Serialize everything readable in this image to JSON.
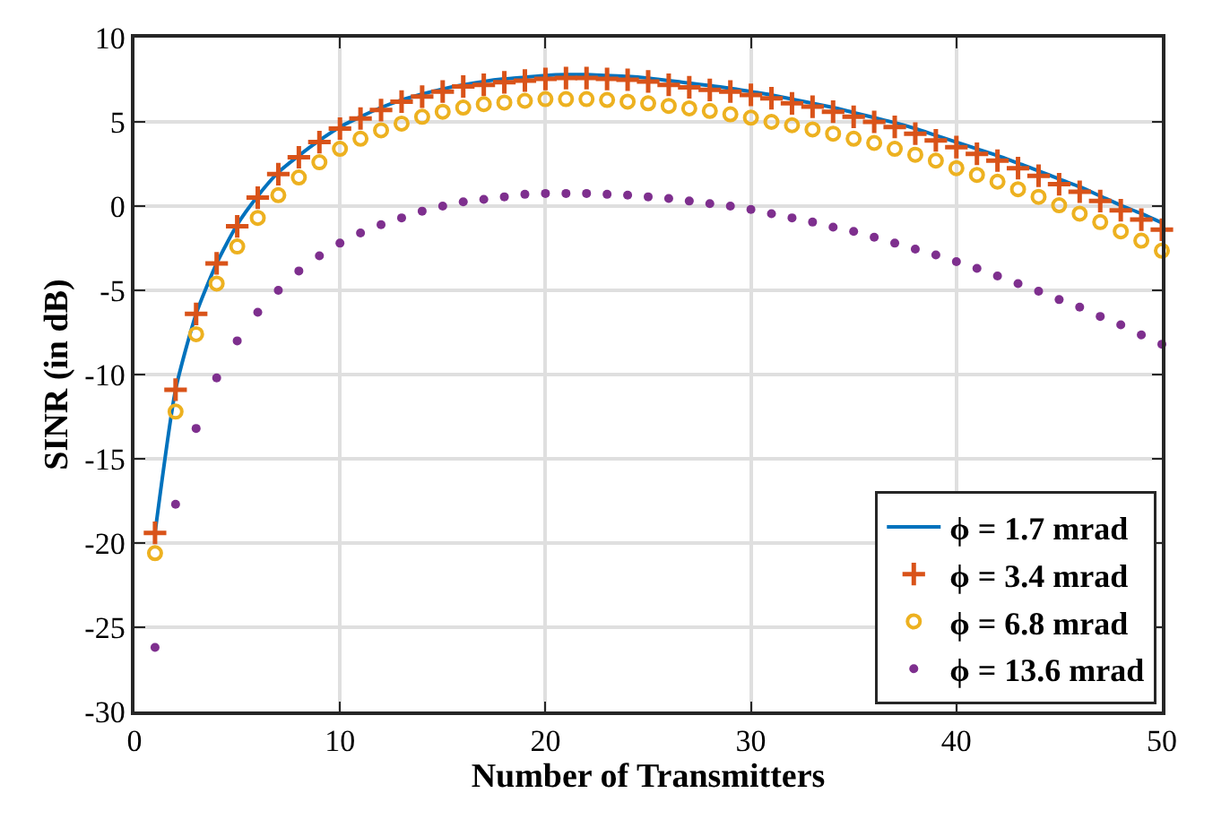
{
  "chart_data": {
    "type": "line",
    "xlabel": "Number of Transmitters",
    "ylabel": "SINR (in dB)",
    "x": [
      1,
      2,
      3,
      4,
      5,
      6,
      7,
      8,
      9,
      10,
      11,
      12,
      13,
      14,
      15,
      16,
      17,
      18,
      19,
      20,
      21,
      22,
      23,
      24,
      25,
      26,
      27,
      28,
      29,
      30,
      31,
      32,
      33,
      34,
      35,
      36,
      37,
      38,
      39,
      40,
      41,
      42,
      43,
      44,
      45,
      46,
      47,
      48,
      49,
      50
    ],
    "series": [
      {
        "name": "ϕ = 1.7 mrad",
        "color": "#0072bd",
        "marker": "none",
        "values": [
          -19.4,
          -10.9,
          -6.4,
          -3.4,
          -1.1,
          0.6,
          2.0,
          3.0,
          3.9,
          4.7,
          5.3,
          5.85,
          6.3,
          6.65,
          6.95,
          7.2,
          7.4,
          7.55,
          7.65,
          7.75,
          7.8,
          7.8,
          7.75,
          7.7,
          7.6,
          7.45,
          7.3,
          7.15,
          7.0,
          6.8,
          6.6,
          6.35,
          6.1,
          5.85,
          5.55,
          5.25,
          4.95,
          4.6,
          4.2,
          3.8,
          3.4,
          3.0,
          2.55,
          2.1,
          1.6,
          1.15,
          0.6,
          0.05,
          -0.45,
          -1.0
        ]
      },
      {
        "name": "ϕ = 3.4 mrad",
        "color": "#d95319",
        "type": "scatter",
        "marker": "cross",
        "values": [
          -19.4,
          -10.9,
          -6.4,
          -3.4,
          -1.2,
          0.5,
          1.9,
          2.9,
          3.8,
          4.6,
          5.2,
          5.7,
          6.2,
          6.5,
          6.8,
          7.1,
          7.2,
          7.35,
          7.45,
          7.55,
          7.6,
          7.6,
          7.55,
          7.5,
          7.4,
          7.2,
          7.05,
          6.9,
          6.8,
          6.6,
          6.4,
          6.1,
          5.9,
          5.6,
          5.3,
          5.0,
          4.7,
          4.3,
          3.9,
          3.5,
          3.1,
          2.7,
          2.25,
          1.8,
          1.3,
          0.85,
          0.3,
          -0.25,
          -0.8,
          -1.4
        ]
      },
      {
        "name": "ϕ = 6.8 mrad",
        "color": "#edb120",
        "type": "scatter",
        "marker": "circle",
        "values": [
          -20.6,
          -12.2,
          -7.6,
          -4.6,
          -2.4,
          -0.7,
          0.65,
          1.7,
          2.6,
          3.4,
          4.0,
          4.5,
          4.9,
          5.3,
          5.6,
          5.85,
          6.05,
          6.15,
          6.25,
          6.35,
          6.35,
          6.35,
          6.3,
          6.2,
          6.1,
          5.95,
          5.8,
          5.65,
          5.45,
          5.25,
          5.0,
          4.8,
          4.55,
          4.3,
          4.0,
          3.75,
          3.4,
          3.05,
          2.7,
          2.25,
          1.85,
          1.45,
          1.0,
          0.55,
          0.05,
          -0.45,
          -0.95,
          -1.5,
          -2.05,
          -2.65
        ]
      },
      {
        "name": "ϕ = 13.6 mrad",
        "color": "#7e2f8e",
        "type": "scatter",
        "marker": "dot",
        "values": [
          -26.2,
          -17.7,
          -13.2,
          -10.2,
          -8.0,
          -6.3,
          -5.0,
          -3.85,
          -2.95,
          -2.2,
          -1.6,
          -1.1,
          -0.7,
          -0.3,
          0.0,
          0.25,
          0.4,
          0.55,
          0.7,
          0.75,
          0.75,
          0.75,
          0.7,
          0.65,
          0.55,
          0.45,
          0.3,
          0.15,
          0.0,
          -0.2,
          -0.45,
          -0.7,
          -0.95,
          -1.25,
          -1.5,
          -1.85,
          -2.2,
          -2.55,
          -2.9,
          -3.3,
          -3.7,
          -4.15,
          -4.6,
          -5.05,
          -5.55,
          -6.0,
          -6.55,
          -7.05,
          -7.65,
          -8.2
        ]
      }
    ],
    "xlim": [
      0,
      50
    ],
    "xticks": [
      0,
      10,
      20,
      30,
      40,
      50
    ],
    "ylim": [
      -30,
      10
    ],
    "yticks": [
      -30,
      -25,
      -20,
      -15,
      -10,
      -5,
      0,
      5,
      10
    ],
    "grid": true,
    "legend": "bottom right"
  }
}
